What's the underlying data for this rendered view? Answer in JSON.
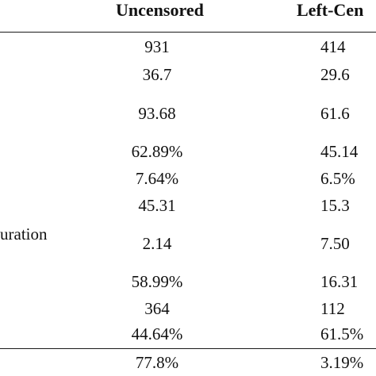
{
  "table": {
    "headers": {
      "uncensored": "Uncensored",
      "left_censored": "Left-Cen"
    },
    "row_label_partial": "uration",
    "rows": [
      {
        "uncensored": "931",
        "left": "414"
      },
      {
        "uncensored": "36.7",
        "left": "29.6"
      },
      {
        "uncensored": "93.68",
        "left": "61.6"
      },
      {
        "uncensored": "62.89%",
        "left": "45.14"
      },
      {
        "uncensored": "7.64%",
        "left": "6.5%"
      },
      {
        "uncensored": "45.31",
        "left": "15.3"
      },
      {
        "uncensored": "2.14",
        "left": "7.50"
      },
      {
        "uncensored": "58.99%",
        "left": "16.31"
      },
      {
        "uncensored": "364",
        "left": "112"
      },
      {
        "uncensored": "44.64%",
        "left": "61.5%"
      }
    ],
    "footer_row": {
      "uncensored": "77.8%",
      "left": "3.19%"
    }
  }
}
